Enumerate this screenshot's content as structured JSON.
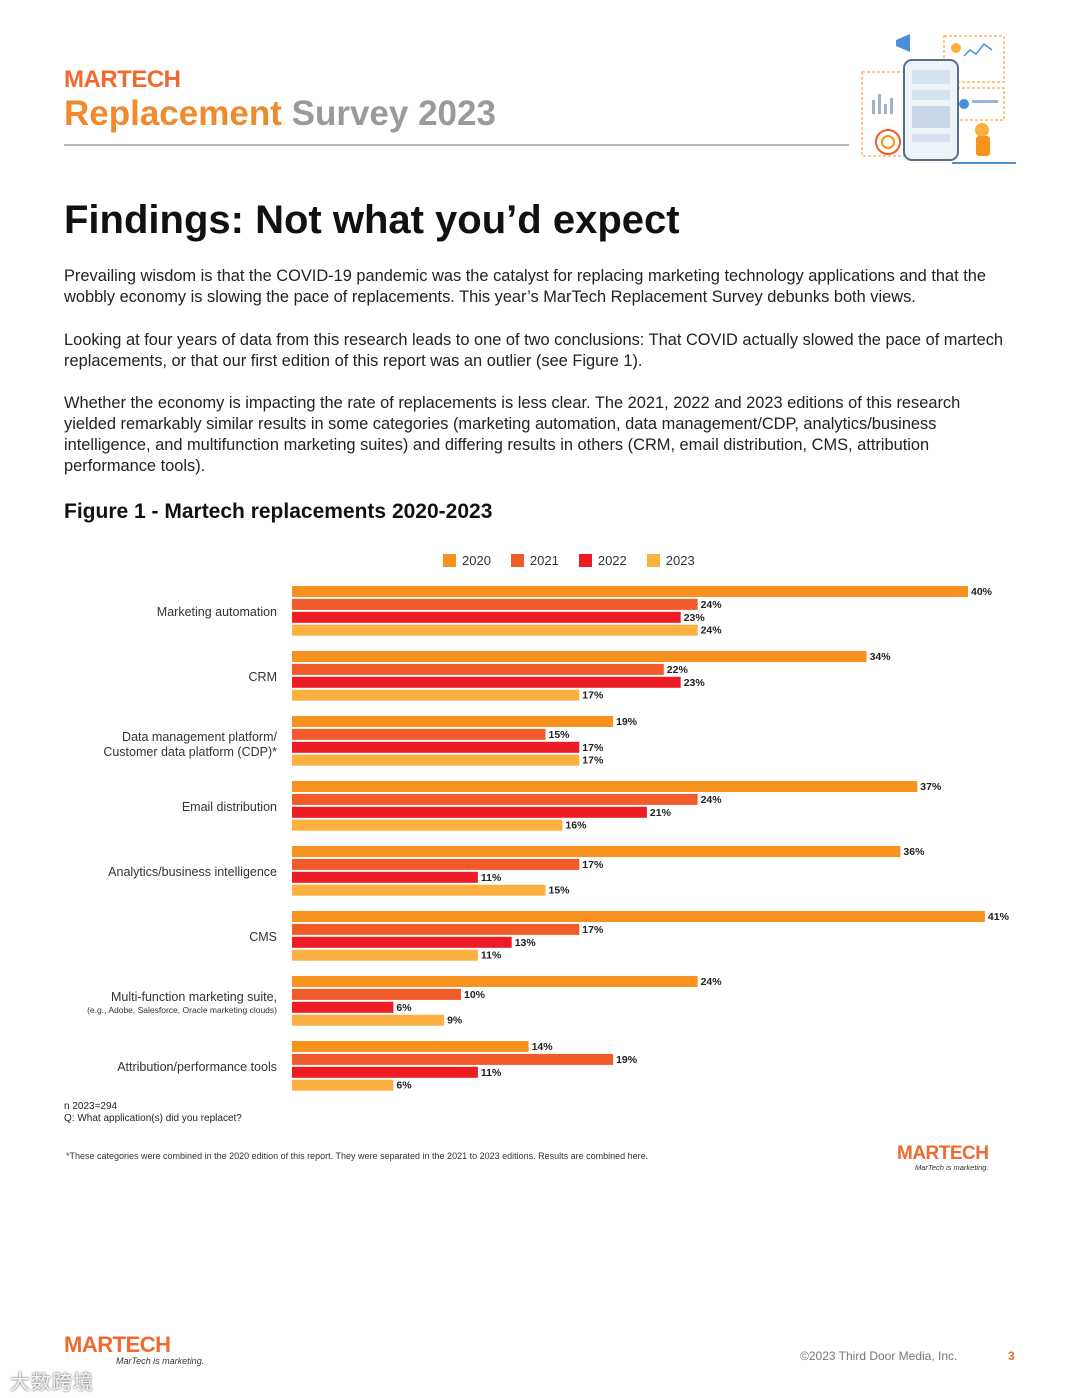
{
  "header": {
    "brand": "MARTECH",
    "title_part1": "Replacement",
    "title_part2": "Survey 2023"
  },
  "headline": "Findings: Not what you’d expect",
  "paragraphs": [
    "Prevailing wisdom is that the COVID-19 pandemic was the catalyst for replacing marketing technology applications and that the wobbly economy is slowing the pace of replacements. This year’s MarTech Replacement Survey debunks both views.",
    "Looking at four years of data from this research leads to one of two conclusions: That COVID actually slowed the pace of martech replacements, or that our first edition of this report was an outlier (see Figure 1).",
    "Whether the economy is impacting the rate of replacements is less clear. The 2021, 2022 and 2023 editions of this research yielded remarkably similar results in some categories (marketing automation, data management/CDP, analytics/business intelligence, and multifunction marketing suites) and differing results in others (CRM, email distribution, CMS, attribution performance tools)."
  ],
  "figure_title": "Figure 1 - Martech replacements 2020-2023",
  "chart_data": {
    "type": "bar",
    "orientation": "horizontal",
    "title": "Figure 1 - Martech replacements 2020-2023",
    "categories": [
      [
        "Marketing automation"
      ],
      [
        "CRM"
      ],
      [
        "Data management platform/",
        "Customer data platform (CDP)*"
      ],
      [
        "Email distribution"
      ],
      [
        "Analytics/business intelligence"
      ],
      [
        "CMS"
      ],
      [
        "Multi-function marketing suite,",
        "(e.g., Adobe, Salesforce, Oracle marketing clouds)"
      ],
      [
        "Attribution/performance tools"
      ]
    ],
    "series": [
      {
        "name": "2020",
        "color": "#f7921e",
        "values": [
          40,
          34,
          19,
          37,
          36,
          41,
          24,
          14
        ]
      },
      {
        "name": "2021",
        "color": "#f15a29",
        "values": [
          24,
          22,
          15,
          24,
          17,
          17,
          10,
          19
        ]
      },
      {
        "name": "2022",
        "color": "#ed1c24",
        "values": [
          23,
          23,
          17,
          21,
          11,
          13,
          6,
          11
        ]
      },
      {
        "name": "2023",
        "color": "#fbb040",
        "values": [
          24,
          17,
          17,
          16,
          15,
          11,
          9,
          6
        ]
      }
    ],
    "value_suffix": "%",
    "xlim": [
      0,
      41
    ],
    "legend_position": "top-center",
    "grid": false
  },
  "notes": [
    "n 2023=294",
    "Q: What application(s) did you replacet?"
  ],
  "footnote": "*These categories were combined in the 2020 edition of this report. They were separated in the 2021 to 2023 editions. Results are combined here.",
  "logo": {
    "word": "MARTECH",
    "tagline": "MarTech is marketing."
  },
  "footer": {
    "copyright": "©2023 Third Door Media, Inc.",
    "page": "3"
  },
  "watermark": "大数跨境"
}
